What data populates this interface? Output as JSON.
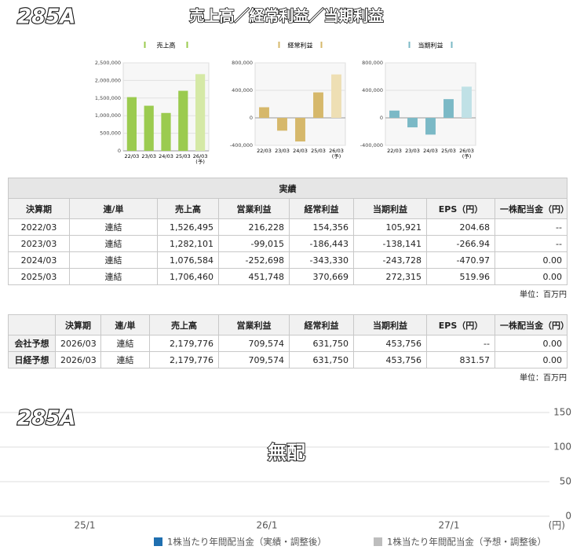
{
  "header": {
    "code": "285A",
    "title": "売上高／経常利益／当期利益"
  },
  "chart_data": [
    {
      "type": "bar",
      "title": "売上高",
      "categories": [
        "22/03",
        "23/03",
        "24/03",
        "25/03",
        "26/03"
      ],
      "forecast_label": "(予)",
      "values": [
        1526495,
        1282101,
        1076584,
        1706460,
        2179776
      ],
      "colors": [
        "#9bcb4f",
        "#9bcb4f",
        "#9bcb4f",
        "#9bcb4f",
        "#d5e9a6"
      ],
      "ylim": [
        0,
        2500000
      ],
      "yticks": [
        {
          "value": 0,
          "label": "0"
        },
        {
          "value": 500000,
          "label": "500,000"
        },
        {
          "value": 1000000,
          "label": "1,000,000"
        },
        {
          "value": 1500000,
          "label": "1,500,000"
        },
        {
          "value": 2000000,
          "label": "2,000,000"
        },
        {
          "value": 2500000,
          "label": "2,500,000"
        }
      ]
    },
    {
      "type": "bar",
      "title": "経常利益",
      "categories": [
        "22/03",
        "23/03",
        "24/03",
        "25/03",
        "26/03"
      ],
      "forecast_label": "(予)",
      "values": [
        154356,
        -186443,
        -343330,
        370669,
        631750
      ],
      "colors": [
        "#d6b86b",
        "#d6b86b",
        "#d6b86b",
        "#d6b86b",
        "#eedfb4"
      ],
      "ylim": [
        -400000,
        800000
      ],
      "yticks": [
        {
          "value": -400000,
          "label": "-400,000"
        },
        0,
        {
          "value": 400000,
          "label": "400,000"
        },
        {
          "value": 800000,
          "label": "800,000"
        }
      ]
    },
    {
      "type": "bar",
      "title": "当期利益",
      "categories": [
        "22/03",
        "23/03",
        "24/03",
        "25/03",
        "26/03"
      ],
      "forecast_label": "(予)",
      "values": [
        105921,
        -138141,
        -243728,
        272315,
        453756
      ],
      "colors": [
        "#7bb9c6",
        "#7bb9c6",
        "#7bb9c6",
        "#7bb9c6",
        "#c0e1e6"
      ],
      "ylim": [
        -400000,
        800000
      ],
      "yticks": [
        {
          "value": -400000,
          "label": "-400,000"
        },
        0,
        {
          "value": 400000,
          "label": "400,000"
        },
        {
          "value": 800000,
          "label": "800,000"
        }
      ]
    },
    {
      "type": "bar",
      "label": "285A",
      "title": "無配",
      "categories": [
        "25/1",
        "26/1",
        "27/1"
      ],
      "y_unit": "(円)",
      "series": [
        {
          "name": "1株当たり年間配当金（実績・調整後）",
          "color": "#1f6fb0",
          "values": [
            null,
            null,
            null
          ]
        },
        {
          "name": "1株当たり年間配当金（予想・調整後）",
          "color": "#bdbdbd",
          "values": [
            null,
            null,
            null
          ]
        }
      ],
      "ylim": [
        0,
        150
      ],
      "yticks": [
        0,
        50,
        100,
        150
      ],
      "grid": true
    }
  ],
  "tables": [
    {
      "caption": "実績",
      "columns": [
        "決算期",
        "連/単",
        "売上高",
        "営業利益",
        "経常利益",
        "当期利益",
        "EPS（円）",
        "一株配当金（円）"
      ],
      "rows": [
        [
          "2022/03",
          "連結",
          "1,526,495",
          "216,228",
          "154,356",
          "105,921",
          "204.68",
          "--"
        ],
        [
          "2023/03",
          "連結",
          "1,282,101",
          "-99,015",
          "-186,443",
          "-138,141",
          "-266.94",
          "--"
        ],
        [
          "2024/03",
          "連結",
          "1,076,584",
          "-252,698",
          "-343,330",
          "-243,728",
          "-470.97",
          "0.00"
        ],
        [
          "2025/03",
          "連結",
          "1,706,460",
          "451,748",
          "370,669",
          "272,315",
          "519.96",
          "0.00"
        ]
      ],
      "unit": "単位：百万円"
    },
    {
      "columns": [
        "決算期",
        "連/単",
        "売上高",
        "営業利益",
        "経常利益",
        "当期利益",
        "EPS（円）",
        "一株配当金（円）"
      ],
      "rows": [
        [
          "会社予想",
          "2026/03",
          "連結",
          "2,179,776",
          "709,574",
          "631,750",
          "453,756",
          "--",
          "0.00"
        ],
        [
          "日経予想",
          "2026/03",
          "連結",
          "2,179,776",
          "709,574",
          "631,750",
          "453,756",
          "831.57",
          "0.00"
        ]
      ],
      "unit": "単位：百万円"
    }
  ]
}
